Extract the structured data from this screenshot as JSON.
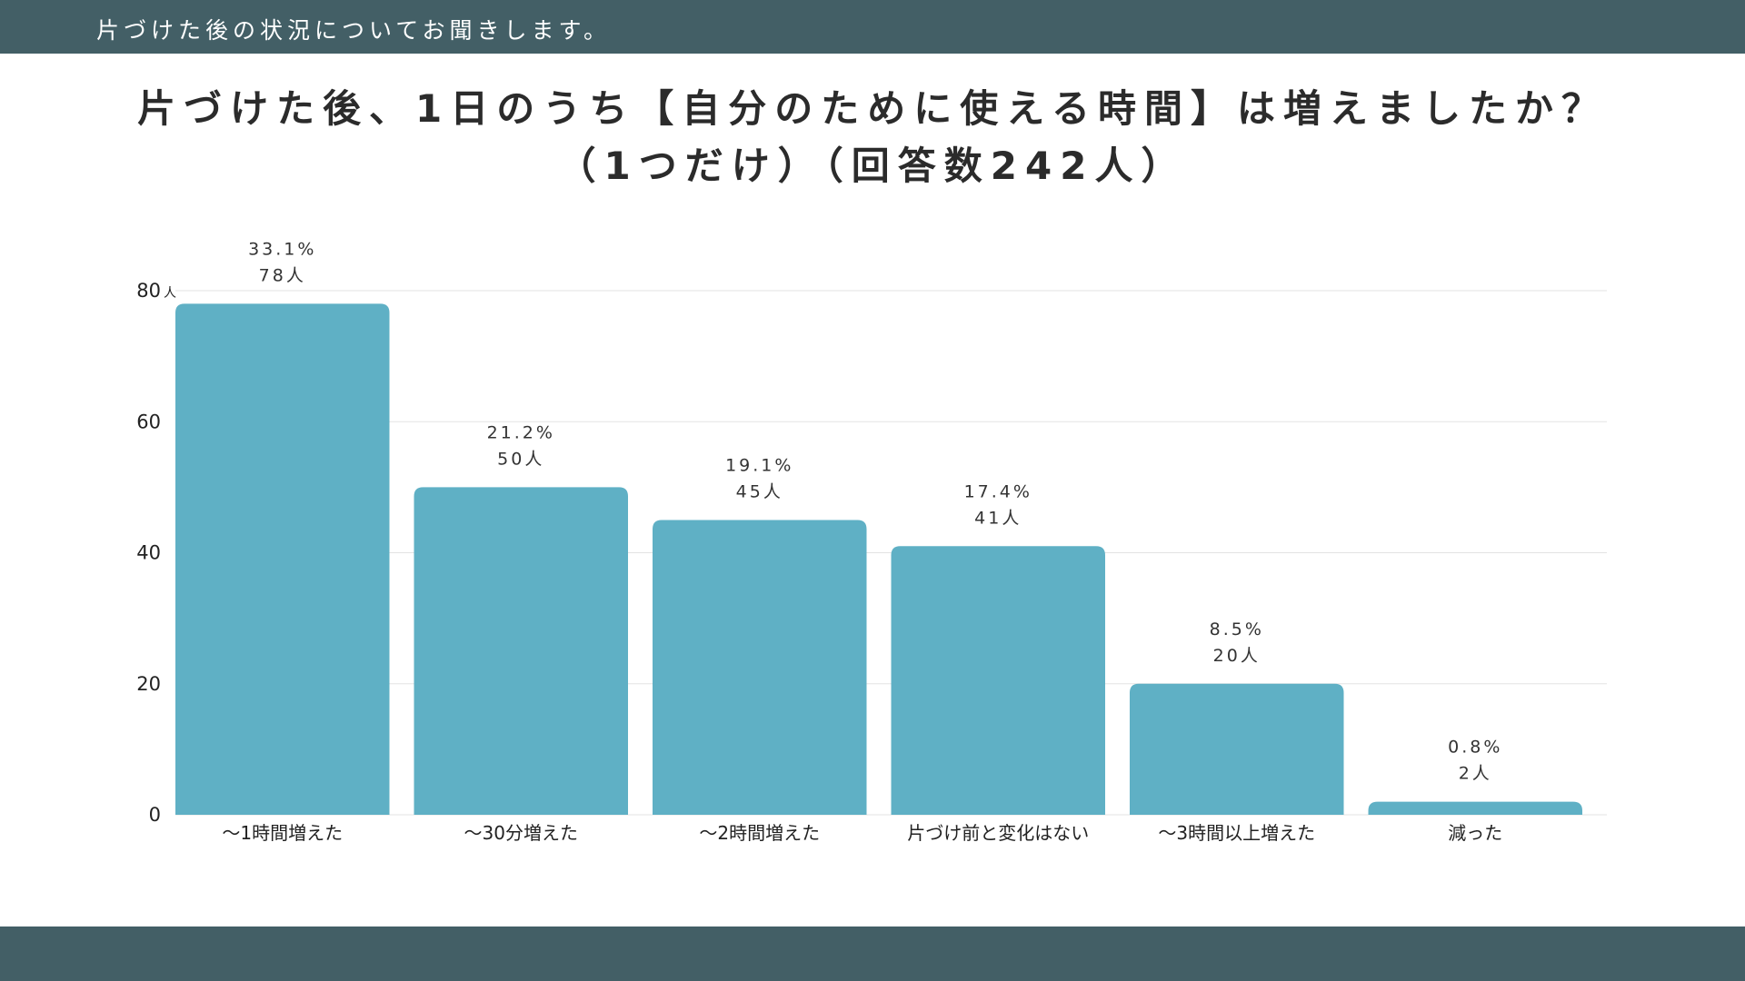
{
  "header": {
    "subtitle": "片づけた後の状況についてお聞きします。"
  },
  "colors": {
    "band": "#435f66",
    "bar": "#5fb0c5",
    "grid": "#e3e3e3"
  },
  "chart_data": {
    "type": "bar",
    "title_line1": "片づけた後、1日のうち【自分のために使える時間】は増えましたか？",
    "title_line2": "（1つだけ）（回答数242人）",
    "xlabel": "",
    "ylabel": "",
    "y_unit": "人",
    "ylim": [
      0,
      80
    ],
    "yticks": [
      0,
      20,
      40,
      60,
      80
    ],
    "grid": true,
    "categories": [
      "〜1時間増えた",
      "〜30分増えた",
      "〜2時間増えた",
      "片づけ前と変化はない",
      "〜3時間以上増えた",
      "減った"
    ],
    "values": [
      78,
      50,
      45,
      41,
      20,
      2
    ],
    "percent_labels": [
      "33.1%",
      "21.2%",
      "19.1%",
      "17.4%",
      "8.5%",
      "0.8%"
    ],
    "count_labels": [
      "78人",
      "50人",
      "45人",
      "41人",
      "20人",
      "2人"
    ]
  }
}
